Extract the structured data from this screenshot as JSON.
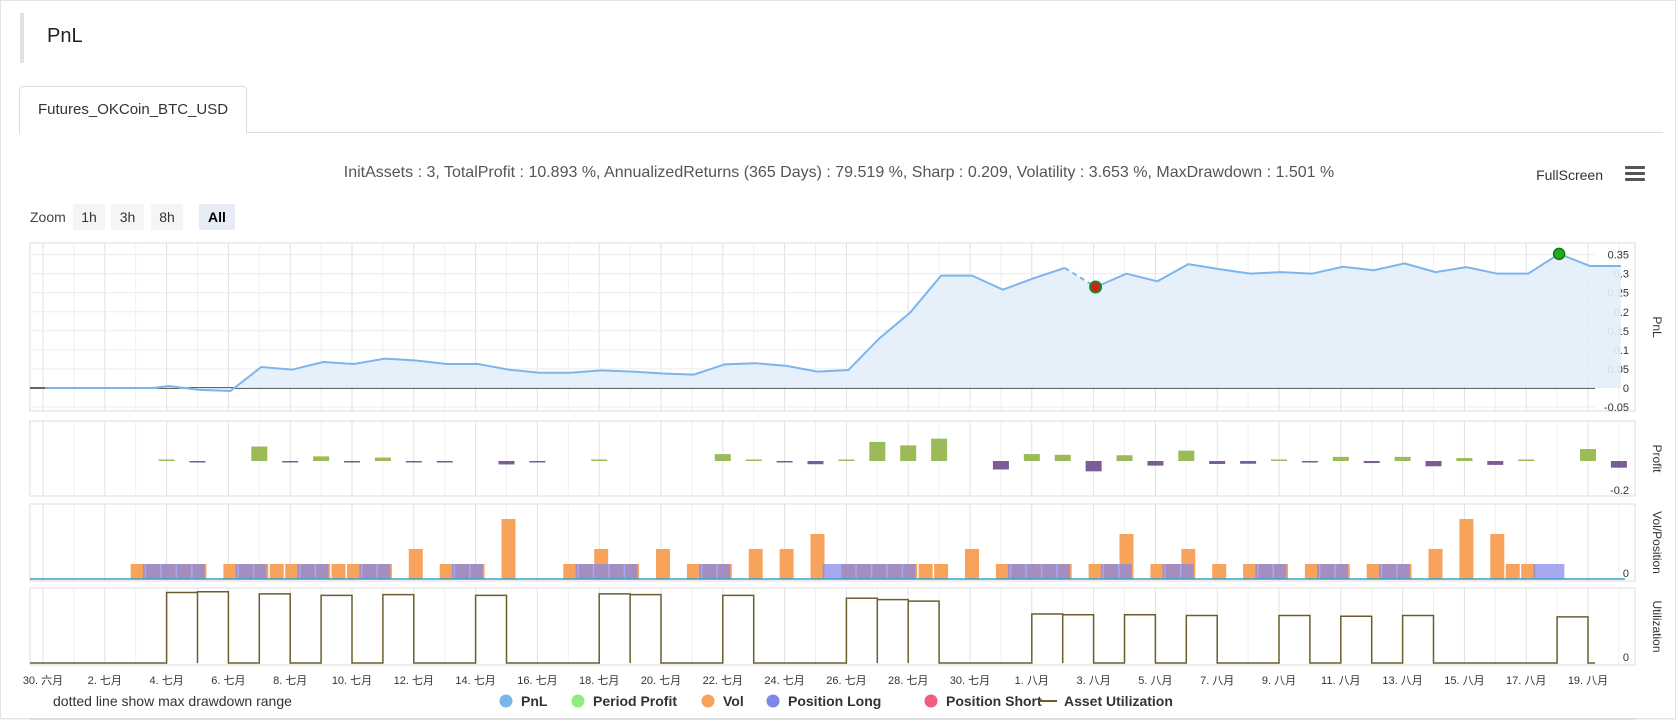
{
  "header": {
    "title": "PnL"
  },
  "tabs": [
    {
      "label": "Futures_OKCoin_BTC_USD",
      "active": true
    }
  ],
  "stats_text": "InitAssets : 3, TotalProfit : 10.893 %, AnnualizedReturns (365 Days) : 79.519 %, Sharp : 0.209, Volatility : 3.653 %, MaxDrawdown : 1.501 %",
  "fullscreen_label": "FullScreen",
  "zoom": {
    "label": "Zoom",
    "buttons": [
      "1h",
      "3h",
      "8h",
      "All"
    ],
    "selected": "All"
  },
  "note": "dotted line show max drawdown range",
  "legend": [
    {
      "name": "PnL",
      "color": "#7cb5ec",
      "symbol": "circle"
    },
    {
      "name": "Period Profit",
      "color": "#90ed7d",
      "symbol": "circle"
    },
    {
      "name": "Vol",
      "color": "#f7a35c",
      "symbol": "circle"
    },
    {
      "name": "Position Long",
      "color": "#8085e9",
      "symbol": "circle"
    },
    {
      "name": "Position Short",
      "color": "#f15c80",
      "symbol": "circle"
    },
    {
      "name": "Asset Utilization",
      "color": "#6b5e2e",
      "symbol": "line"
    }
  ],
  "chart_data": {
    "type": "line",
    "x_ticks": [
      "30. 六月",
      "2. 七月",
      "4. 七月",
      "6. 七月",
      "8. 七月",
      "10. 七月",
      "12. 七月",
      "14. 七月",
      "16. 七月",
      "18. 七月",
      "20. 七月",
      "22. 七月",
      "24. 七月",
      "26. 七月",
      "28. 七月",
      "30. 七月",
      "1. 八月",
      "3. 八月",
      "5. 八月",
      "7. 八月",
      "9. 八月",
      "11. 八月",
      "13. 八月",
      "15. 八月",
      "17. 八月",
      "19. 八月"
    ],
    "x_range_days": [
      0,
      51.2
    ],
    "panels": [
      {
        "name": "PnL",
        "ylabel": "PnL",
        "y_ticks": [
          "0.35",
          "0.3",
          "0.25",
          "0.2",
          "0.15",
          "0.1",
          "0.05",
          "0",
          "-0.05"
        ],
        "ylim": [
          -0.05,
          0.37
        ],
        "series": {
          "name": "PnL",
          "color": "#7cb5ec",
          "x": [
            0,
            1,
            2,
            3,
            3.5,
            4,
            5,
            6,
            7,
            8,
            9,
            10,
            11,
            12,
            13,
            14,
            15,
            16,
            17,
            18,
            19,
            20,
            21,
            22,
            23,
            24,
            25,
            26,
            27,
            28,
            29,
            30,
            31,
            32,
            33,
            34,
            35,
            36,
            37,
            38,
            39,
            40,
            41,
            42,
            43,
            44,
            45,
            46,
            47,
            48,
            49,
            50,
            51
          ],
          "y": [
            0,
            0,
            0,
            0,
            0,
            0.005,
            -0.005,
            -0.008,
            0.055,
            0.048,
            0.068,
            0.063,
            0.077,
            0.072,
            0.063,
            0.063,
            0.048,
            0.04,
            0.04,
            0.046,
            0.043,
            0.038,
            0.035,
            0.062,
            0.065,
            0.058,
            0.043,
            0.047,
            0.13,
            0.198,
            0.295,
            0.295,
            0.258,
            0.288,
            0.315,
            0.265,
            0.3,
            0.28,
            0.325,
            0.312,
            0.3,
            0.304,
            0.3,
            0.318,
            0.309,
            0.327,
            0.304,
            0.317,
            0.3,
            0.3,
            0.352,
            0.32,
            0.32
          ]
        },
        "drawdown": {
          "from_x": 33,
          "to_x": 34,
          "from_y": 0.315,
          "to_y": 0.265
        },
        "markers": [
          {
            "x": 34,
            "y": 0.265,
            "label": "max-drawdown-low"
          },
          {
            "x": 49,
            "y": 0.352,
            "label": "max-pnl"
          }
        ]
      },
      {
        "name": "Profit",
        "ylabel": "Profit",
        "y_ticks": [
          "-0.2"
        ],
        "ylim": [
          -0.25,
          0.25
        ],
        "series": {
          "name": "Period Profit",
          "positive_color": "#9bbb59",
          "negative_color": "#7b5c97",
          "x": [
            4,
            5,
            7,
            8,
            9,
            10,
            11,
            12,
            13,
            15,
            16,
            18,
            22,
            23,
            24,
            25,
            26,
            27,
            28,
            29,
            31,
            32,
            33,
            34,
            35,
            36,
            37,
            38,
            39,
            40,
            41,
            42,
            43,
            44,
            45,
            46,
            47,
            48,
            50,
            51
          ],
          "y": [
            0.005,
            -0.005,
            0.063,
            -0.005,
            0.02,
            -0.006,
            0.015,
            -0.005,
            -0.005,
            -0.015,
            -0.005,
            0.006,
            0.03,
            0.003,
            -0.006,
            -0.014,
            0.004,
            0.083,
            0.068,
            0.097,
            -0.037,
            0.03,
            0.027,
            -0.045,
            0.025,
            -0.02,
            0.045,
            -0.013,
            -0.012,
            0.006,
            -0.004,
            0.018,
            -0.009,
            0.018,
            -0.023,
            0.013,
            -0.017,
            0,
            0.052,
            -0.029
          ]
        }
      },
      {
        "name": "Vol/Position",
        "ylabel": "Vol/Position",
        "y_ticks": [
          "0"
        ],
        "ylim": [
          0,
          4.2
        ],
        "vol": {
          "name": "Vol",
          "color": "#f7a35c",
          "x": [
            3,
            3.5,
            4,
            4.5,
            5,
            6,
            6.5,
            7,
            7.5,
            8,
            8.5,
            9,
            9.5,
            10,
            10.5,
            11,
            12,
            13,
            13.5,
            14,
            15,
            17,
            17.5,
            18,
            18.5,
            19,
            20,
            21,
            21.5,
            22,
            23,
            24,
            25,
            26,
            26.5,
            27,
            27.5,
            28,
            28.5,
            29,
            30,
            31,
            31.5,
            32,
            32.5,
            33,
            34,
            34.5,
            35,
            36,
            36.5,
            37,
            38,
            39,
            39.5,
            40,
            41,
            41.5,
            42,
            43,
            43.5,
            44,
            45,
            46,
            47,
            47.5,
            48
          ],
          "y": [
            1,
            1,
            1,
            1,
            1,
            1,
            1,
            1,
            1,
            1,
            1,
            1,
            1,
            1,
            1,
            1,
            2,
            1,
            1,
            1,
            4,
            1,
            1,
            2,
            1,
            1,
            2,
            1,
            1,
            1,
            2,
            2,
            3,
            1,
            1,
            1,
            1,
            1,
            1,
            1,
            2,
            1,
            1,
            1,
            1,
            1,
            1,
            1,
            3,
            1,
            1,
            2,
            1,
            1,
            1,
            1,
            1,
            1,
            1,
            1,
            1,
            1,
            2,
            4,
            3,
            1,
            1
          ]
        },
        "position_long": {
          "name": "Position Long",
          "color": "#8085e9",
          "spans": [
            [
              3.3,
              5.3
            ],
            [
              6.3,
              7.3
            ],
            [
              8.3,
              9.3
            ],
            [
              10.3,
              11.3
            ],
            [
              13.3,
              14.3
            ],
            [
              17.3,
              19.3
            ],
            [
              21.3,
              22.3
            ],
            [
              25.3,
              28.3
            ],
            [
              31.3,
              33.3
            ],
            [
              34.3,
              35.3
            ],
            [
              36.3,
              37.3
            ],
            [
              39.3,
              40.3
            ],
            [
              41.3,
              42.3
            ],
            [
              43.3,
              44.3
            ],
            [
              48.3,
              49.3
            ]
          ],
          "level": 1
        }
      },
      {
        "name": "Utilization",
        "ylabel": "Utilization",
        "y_ticks": [
          "0"
        ],
        "ylim": [
          0,
          1.05
        ],
        "series": {
          "name": "Asset Utilization",
          "color": "#6b5e2e",
          "spans": [
            {
              "x0": 4,
              "x1": 5,
              "y": 0.98
            },
            {
              "x0": 5,
              "x1": 6,
              "y": 0.99
            },
            {
              "x0": 7,
              "x1": 8,
              "y": 0.96
            },
            {
              "x0": 9,
              "x1": 10,
              "y": 0.94
            },
            {
              "x0": 11,
              "x1": 12,
              "y": 0.95
            },
            {
              "x0": 14,
              "x1": 15,
              "y": 0.94
            },
            {
              "x0": 18,
              "x1": 19,
              "y": 0.96
            },
            {
              "x0": 19,
              "x1": 20,
              "y": 0.95
            },
            {
              "x0": 22,
              "x1": 23,
              "y": 0.94
            },
            {
              "x0": 26,
              "x1": 27,
              "y": 0.9
            },
            {
              "x0": 27,
              "x1": 28,
              "y": 0.88
            },
            {
              "x0": 28,
              "x1": 29,
              "y": 0.86
            },
            {
              "x0": 32,
              "x1": 33,
              "y": 0.68
            },
            {
              "x0": 33,
              "x1": 34,
              "y": 0.67
            },
            {
              "x0": 35,
              "x1": 36,
              "y": 0.67
            },
            {
              "x0": 37,
              "x1": 38,
              "y": 0.66
            },
            {
              "x0": 40,
              "x1": 41,
              "y": 0.66
            },
            {
              "x0": 42,
              "x1": 43,
              "y": 0.65
            },
            {
              "x0": 44,
              "x1": 45,
              "y": 0.66
            },
            {
              "x0": 49,
              "x1": 50,
              "y": 0.64
            }
          ]
        }
      }
    ]
  }
}
